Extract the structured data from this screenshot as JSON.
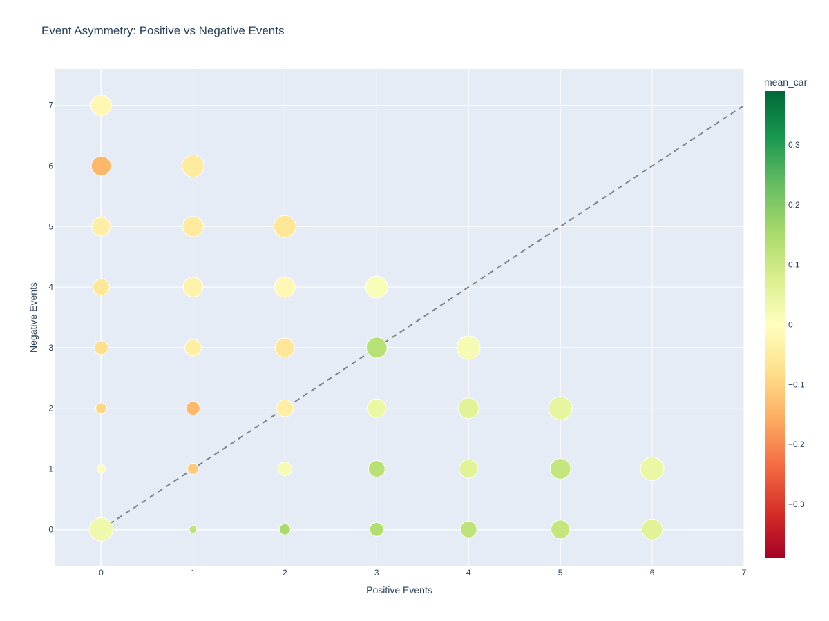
{
  "chart_data": {
    "type": "scatter",
    "title": "Event Asymmetry: Positive vs Negative Events",
    "xlabel": "Positive Events",
    "ylabel": "Negative Events",
    "xlim": [
      -0.5,
      7
    ],
    "ylim": [
      -0.6,
      7.6
    ],
    "xticks": [
      0,
      1,
      2,
      3,
      4,
      5,
      6,
      7
    ],
    "yticks": [
      0,
      1,
      2,
      3,
      4,
      5,
      6,
      7
    ],
    "grid": true,
    "colorbar": {
      "title": "mean_car",
      "range": [
        -0.39,
        0.39
      ],
      "ticks": [
        -0.3,
        -0.2,
        -0.1,
        0,
        0.1,
        0.2,
        0.3
      ],
      "tick_labels": [
        "−0.3",
        "−0.2",
        "−0.1",
        "0",
        "0.1",
        "0.2",
        "0.3"
      ],
      "colorscale": [
        "#a50026",
        "#d73027",
        "#f46d43",
        "#fdae61",
        "#fee08b",
        "#ffffbf",
        "#d9ef8b",
        "#a6d96a",
        "#66bd63",
        "#1a9850",
        "#006837"
      ]
    },
    "reference_line": {
      "x": [
        0,
        7
      ],
      "y": [
        0,
        7
      ],
      "style": "dashed",
      "color": "#808080"
    },
    "points": [
      {
        "x": 0,
        "y": 7,
        "mean_car": -0.02,
        "size": 0.75
      },
      {
        "x": 0,
        "y": 6,
        "mean_car": -0.14,
        "size": 0.72
      },
      {
        "x": 1,
        "y": 6,
        "mean_car": -0.05,
        "size": 0.8
      },
      {
        "x": 0,
        "y": 5,
        "mean_car": -0.04,
        "size": 0.68
      },
      {
        "x": 1,
        "y": 5,
        "mean_car": -0.05,
        "size": 0.75
      },
      {
        "x": 2,
        "y": 5,
        "mean_car": -0.06,
        "size": 0.8
      },
      {
        "x": 0,
        "y": 4,
        "mean_car": -0.06,
        "size": 0.6
      },
      {
        "x": 1,
        "y": 4,
        "mean_car": -0.03,
        "size": 0.72
      },
      {
        "x": 2,
        "y": 4,
        "mean_car": -0.02,
        "size": 0.75
      },
      {
        "x": 3,
        "y": 4,
        "mean_car": 0.01,
        "size": 0.8
      },
      {
        "x": 0,
        "y": 3,
        "mean_car": -0.08,
        "size": 0.5
      },
      {
        "x": 1,
        "y": 3,
        "mean_car": -0.04,
        "size": 0.6
      },
      {
        "x": 2,
        "y": 3,
        "mean_car": -0.06,
        "size": 0.7
      },
      {
        "x": 3,
        "y": 3,
        "mean_car": 0.13,
        "size": 0.75
      },
      {
        "x": 4,
        "y": 3,
        "mean_car": 0.02,
        "size": 0.85
      },
      {
        "x": 0,
        "y": 2,
        "mean_car": -0.09,
        "size": 0.4
      },
      {
        "x": 1,
        "y": 2,
        "mean_car": -0.14,
        "size": 0.5
      },
      {
        "x": 2,
        "y": 2,
        "mean_car": -0.04,
        "size": 0.62
      },
      {
        "x": 3,
        "y": 2,
        "mean_car": 0.04,
        "size": 0.68
      },
      {
        "x": 4,
        "y": 2,
        "mean_car": 0.06,
        "size": 0.75
      },
      {
        "x": 5,
        "y": 2,
        "mean_car": 0.05,
        "size": 0.85
      },
      {
        "x": 0,
        "y": 1,
        "mean_car": -0.01,
        "size": 0.3
      },
      {
        "x": 1,
        "y": 1,
        "mean_car": -0.11,
        "size": 0.4
      },
      {
        "x": 2,
        "y": 1,
        "mean_car": 0.02,
        "size": 0.5
      },
      {
        "x": 3,
        "y": 1,
        "mean_car": 0.13,
        "size": 0.6
      },
      {
        "x": 4,
        "y": 1,
        "mean_car": 0.06,
        "size": 0.68
      },
      {
        "x": 5,
        "y": 1,
        "mean_car": 0.11,
        "size": 0.75
      },
      {
        "x": 6,
        "y": 1,
        "mean_car": 0.04,
        "size": 0.85
      },
      {
        "x": 0,
        "y": 0,
        "mean_car": 0.03,
        "size": 0.85
      },
      {
        "x": 1,
        "y": 0,
        "mean_car": 0.12,
        "size": 0.28
      },
      {
        "x": 2,
        "y": 0,
        "mean_car": 0.15,
        "size": 0.4
      },
      {
        "x": 3,
        "y": 0,
        "mean_car": 0.14,
        "size": 0.5
      },
      {
        "x": 4,
        "y": 0,
        "mean_car": 0.12,
        "size": 0.6
      },
      {
        "x": 5,
        "y": 0,
        "mean_car": 0.11,
        "size": 0.68
      },
      {
        "x": 6,
        "y": 0,
        "mean_car": 0.06,
        "size": 0.75
      }
    ]
  }
}
